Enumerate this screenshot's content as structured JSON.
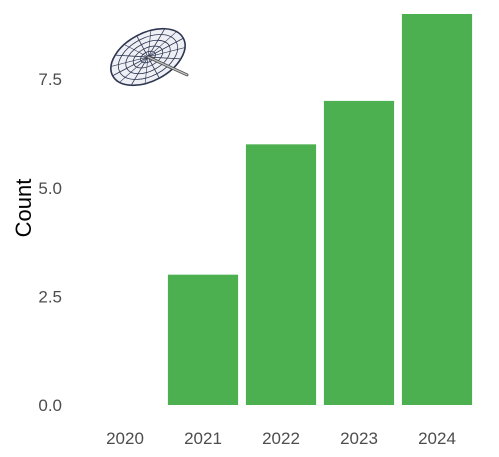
{
  "chart_data": {
    "type": "bar",
    "title": "",
    "xlabel": "",
    "ylabel": "Count",
    "categories": [
      "2020",
      "2021",
      "2022",
      "2023",
      "2024"
    ],
    "values": [
      0,
      3,
      6,
      7,
      9
    ],
    "ylim": [
      0,
      9
    ],
    "y_ticks": [
      "0.0",
      "2.5",
      "5.0",
      "7.5"
    ],
    "y_tick_values": [
      0,
      2.5,
      5,
      7.5
    ],
    "grid": false,
    "legend": "none",
    "bar_color": "#4caf50",
    "background_color": "#ffffff",
    "decoration": "umbrella-icon"
  }
}
